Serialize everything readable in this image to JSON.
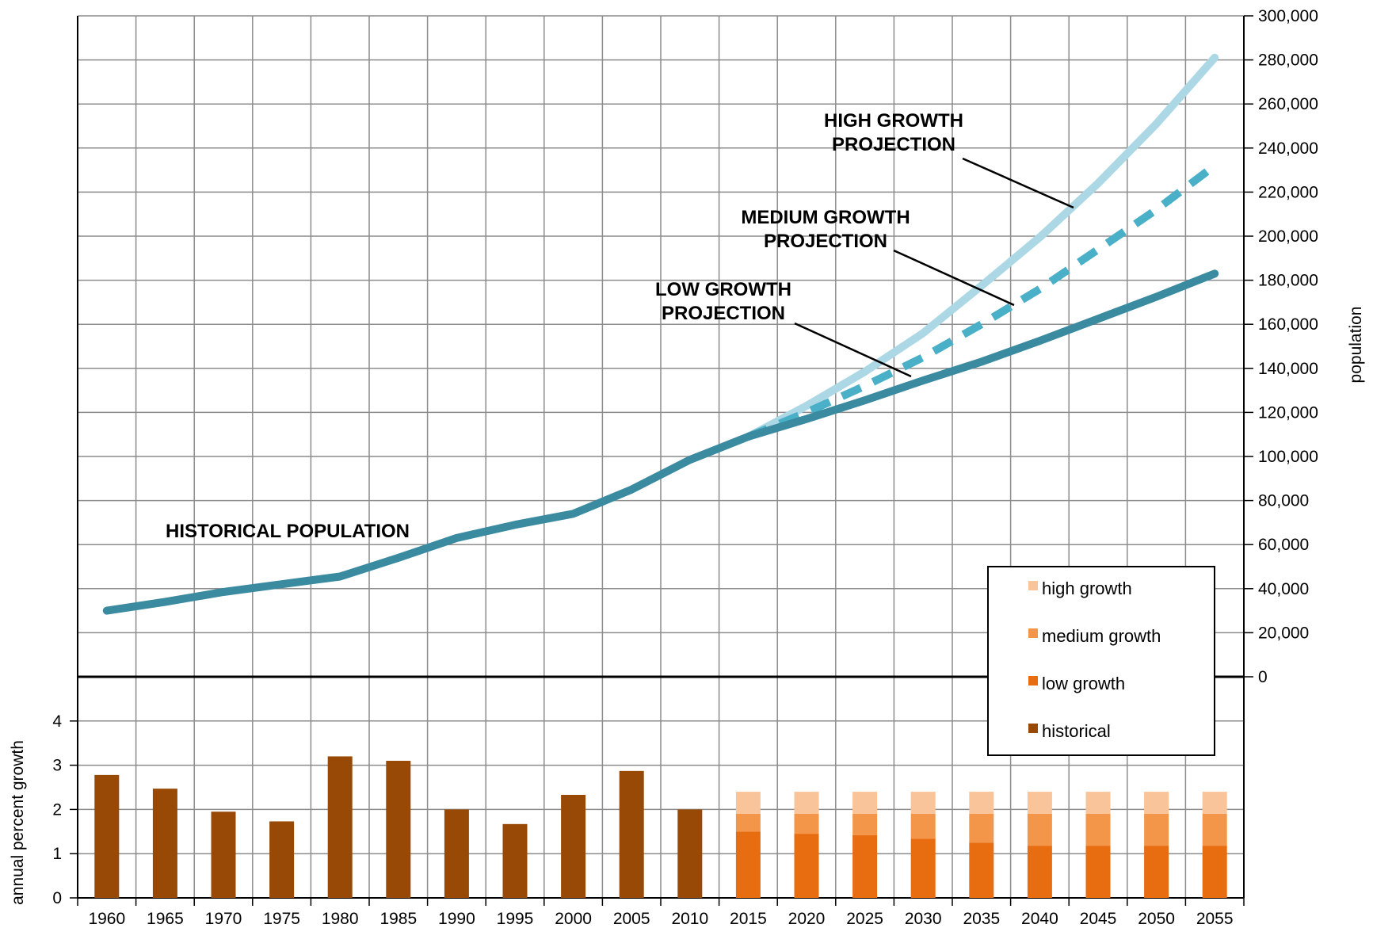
{
  "chart_data": [
    {
      "type": "line",
      "ylabel": "population",
      "ylim": [
        0,
        300000
      ],
      "y_ticks": [
        "0",
        "20,000",
        "40,000",
        "60,000",
        "80,000",
        "100,000",
        "120,000",
        "140,000",
        "160,000",
        "180,000",
        "200,000",
        "220,000",
        "240,000",
        "260,000",
        "280,000",
        "300,000"
      ],
      "grid": true,
      "series": [
        {
          "name": "HISTORICAL POPULATION",
          "color": "#3a8aa0",
          "style": "solid",
          "x": [
            1960,
            1965,
            1970,
            1975,
            1980,
            1985,
            1990,
            1995,
            2000,
            2005,
            2010,
            2015
          ],
          "values": [
            30000,
            34000,
            38500,
            42000,
            45500,
            54000,
            63000,
            69000,
            74000,
            85000,
            98500,
            109000
          ]
        },
        {
          "name": "LOW GROWTH PROJECTION",
          "color": "#3a8aa0",
          "style": "solid",
          "x": [
            2015,
            2020,
            2025,
            2030,
            2035,
            2040,
            2045,
            2050,
            2055
          ],
          "values": [
            109000,
            117000,
            125500,
            134500,
            143000,
            152500,
            162500,
            172500,
            183000
          ]
        },
        {
          "name": "MEDIUM GROWTH PROJECTION",
          "color": "#4ab0c8",
          "style": "dashed",
          "x": [
            2015,
            2020,
            2025,
            2030,
            2035,
            2040,
            2045,
            2050,
            2055
          ],
          "values": [
            109000,
            120000,
            132000,
            145000,
            160000,
            176000,
            194000,
            212000,
            232000
          ]
        },
        {
          "name": "HIGH GROWTH PROJECTION",
          "color": "#acd8e6",
          "style": "solid",
          "x": [
            2015,
            2020,
            2025,
            2030,
            2035,
            2040,
            2045,
            2050,
            2055
          ],
          "values": [
            109000,
            123000,
            138500,
            156000,
            177500,
            199500,
            224000,
            251000,
            281000
          ]
        }
      ],
      "annotations": [
        {
          "lines": [
            "HISTORICAL POPULATION"
          ]
        },
        {
          "lines": [
            "LOW GROWTH",
            "PROJECTION"
          ]
        },
        {
          "lines": [
            "MEDIUM GROWTH",
            "PROJECTION"
          ]
        },
        {
          "lines": [
            "HIGH GROWTH",
            "PROJECTION"
          ]
        }
      ]
    },
    {
      "type": "bar",
      "ylabel": "annual percent growth",
      "ylim": [
        0,
        5
      ],
      "y_ticks": [
        "0",
        "1",
        "2",
        "3",
        "4"
      ],
      "categories": [
        "1960",
        "1965",
        "1970",
        "1975",
        "1980",
        "1985",
        "1990",
        "1995",
        "2000",
        "2005",
        "2010",
        "2015",
        "2020",
        "2025",
        "2030",
        "2035",
        "2040",
        "2045",
        "2050",
        "2055"
      ],
      "historical": [
        2.78,
        2.47,
        1.95,
        1.73,
        3.2,
        3.1,
        2.0,
        1.67,
        2.33,
        2.87,
        2.0
      ],
      "projections": {
        "low": [
          1.5,
          1.45,
          1.42,
          1.34,
          1.25,
          1.18,
          1.18,
          1.18,
          1.18
        ],
        "medium": [
          1.9,
          1.9,
          1.9,
          1.9,
          1.9,
          1.9,
          1.9,
          1.9,
          1.9
        ],
        "high": [
          2.4,
          2.4,
          2.4,
          2.4,
          2.4,
          2.4,
          2.4,
          2.4,
          2.4
        ]
      },
      "legend": {
        "position": "right",
        "items": [
          {
            "label": "high growth",
            "color": "#f9c49a"
          },
          {
            "label": "medium growth",
            "color": "#f3964a"
          },
          {
            "label": "low growth",
            "color": "#e86d11"
          },
          {
            "label": "historical",
            "color": "#994906"
          }
        ]
      }
    }
  ]
}
